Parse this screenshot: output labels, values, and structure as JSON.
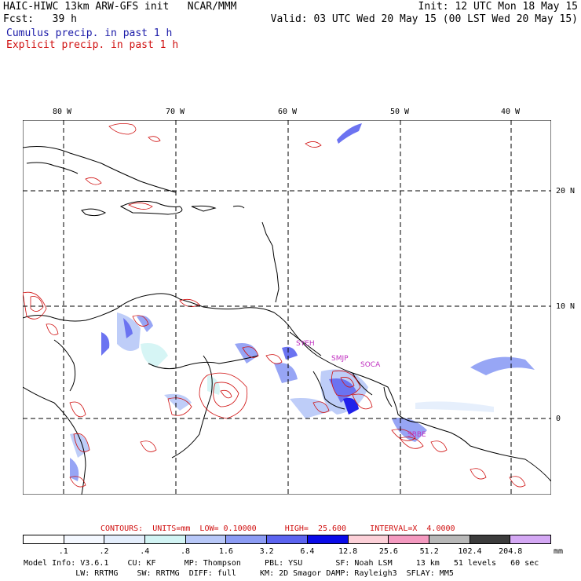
{
  "header": {
    "line1_left": "HAIC-HIWC 13km ARW-GFS init   NCAR/MMM",
    "line1_right": "Init: 12 UTC Mon 18 May 15",
    "line2_left": "Fcst:   39 h",
    "line2_right": "Valid: 03 UTC Wed 20 May 15 (00 LST Wed 20 May 15)",
    "line3": "Cumulus precip. in past 1 h",
    "line4": "Explicit precip. in past 1 h",
    "line3_color": "#1a1aa8",
    "line4_color": "#d01010"
  },
  "axes": {
    "lon_labels": [
      "80 W",
      "70 W",
      "60 W",
      "50 W",
      "40 W"
    ],
    "lat_labels": [
      "20 N",
      "10 N",
      "0"
    ]
  },
  "stations": [
    "SYEH",
    "SMJP",
    "SOCA",
    "SBBE"
  ],
  "station_color": "#c030c0",
  "contours": {
    "label": "CONTOURS:  UNITS=mm  LOW= 0.10000      HIGH=  25.600     INTERVAL=X  4.0000",
    "color": "#d01010"
  },
  "legend": {
    "values": [
      ".1",
      ".2",
      ".4",
      ".8",
      "1.6",
      "3.2",
      "6.4",
      "12.8",
      "25.6",
      "51.2",
      "102.4",
      "204.8"
    ],
    "unit": "mm",
    "colors": [
      "#ffffff",
      "#f4f8ff",
      "#e4eefc",
      "#d2f4f4",
      "#b8c8f8",
      "#8c9cf4",
      "#5c64f0",
      "#0a0ae8",
      "#fcd0d8",
      "#f49ac0",
      "#b8b8b8",
      "#3c3c3c",
      "#d4a8f4"
    ]
  },
  "footer": {
    "line1": "Model Info: V3.6.1    CU: KF      MP: Thompson     PBL: YSU       SF: Noah LSM     13 km   51 levels   60 sec",
    "line2": "           LW: RRTMG    SW: RRTMG  DIFF: full     KM: 2D Smagor DAMP: Rayleigh3  SFLAY: MM5"
  }
}
